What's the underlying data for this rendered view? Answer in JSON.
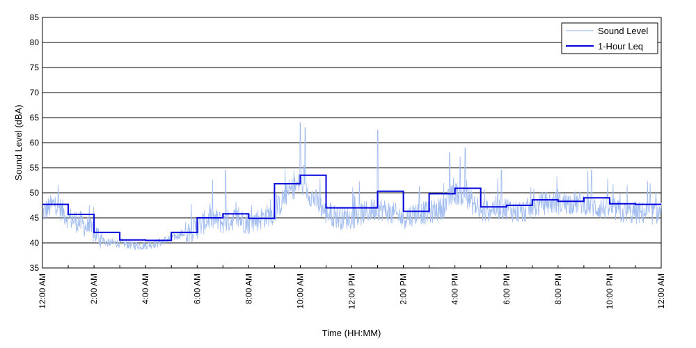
{
  "chart_data": {
    "type": "line",
    "title": "",
    "xlabel": "Time (HH:MM)",
    "ylabel": "Sound Level (dBA)",
    "ylim": [
      35,
      85
    ],
    "yticks": [
      35,
      40,
      45,
      50,
      55,
      60,
      65,
      70,
      75,
      80,
      85
    ],
    "xlim": [
      0,
      24
    ],
    "xtick_labels": [
      "12:00 AM",
      "2:00 AM",
      "4:00 AM",
      "6:00 AM",
      "8:00 AM",
      "10:00 AM",
      "12:00 PM",
      "2:00 PM",
      "4:00 PM",
      "6:00 PM",
      "8:00 PM",
      "10:00 PM",
      "12:00 AM"
    ],
    "grid": "horizontal",
    "legend_position": "top-right",
    "colors": {
      "sound_level": "#a4bef0",
      "leq": "#0000dd"
    },
    "series": [
      {
        "name": "Sound Level",
        "x_unit": "hour",
        "x": [
          0,
          0.5,
          1,
          1.5,
          2,
          2.5,
          3,
          3.5,
          4,
          4.5,
          5,
          5.5,
          6,
          6.5,
          7,
          7.5,
          8,
          8.5,
          9,
          9.5,
          10,
          10.5,
          11,
          11.5,
          12,
          12.5,
          13,
          13.5,
          14,
          14.5,
          15,
          15.5,
          16,
          16.5,
          17,
          17.5,
          18,
          18.5,
          19,
          19.5,
          20,
          20.5,
          21,
          21.5,
          22,
          22.5,
          23,
          23.5,
          24
        ],
        "values": [
          46,
          48,
          45,
          44,
          42,
          40,
          40,
          39.5,
          39.5,
          40,
          41,
          42,
          43,
          45,
          44,
          45,
          44,
          45,
          46,
          50,
          52,
          49,
          46,
          45,
          45,
          46,
          47,
          46,
          45,
          46,
          46,
          47,
          50,
          49,
          46,
          47,
          47,
          46,
          47,
          48,
          48,
          48,
          48,
          47,
          47,
          46,
          46,
          46,
          46
        ],
        "peaks": [
          {
            "x": 10.0,
            "y": 64
          },
          {
            "x": 10.2,
            "y": 63
          },
          {
            "x": 13.0,
            "y": 62.5
          },
          {
            "x": 15.8,
            "y": 58
          },
          {
            "x": 16.4,
            "y": 59
          },
          {
            "x": 7.1,
            "y": 54.5
          },
          {
            "x": 17.8,
            "y": 54.5
          },
          {
            "x": 21.3,
            "y": 54.5
          }
        ]
      },
      {
        "name": "1-Hour Leq",
        "values": [
          47.7,
          45.7,
          42.1,
          40.6,
          40.5,
          42.1,
          45.0,
          45.8,
          44.9,
          51.8,
          53.5,
          47.0,
          47.0,
          50.3,
          46.3,
          49.8,
          50.9,
          47.2,
          47.5,
          48.6,
          48.3,
          49.0,
          47.8,
          47.7
        ]
      }
    ]
  }
}
